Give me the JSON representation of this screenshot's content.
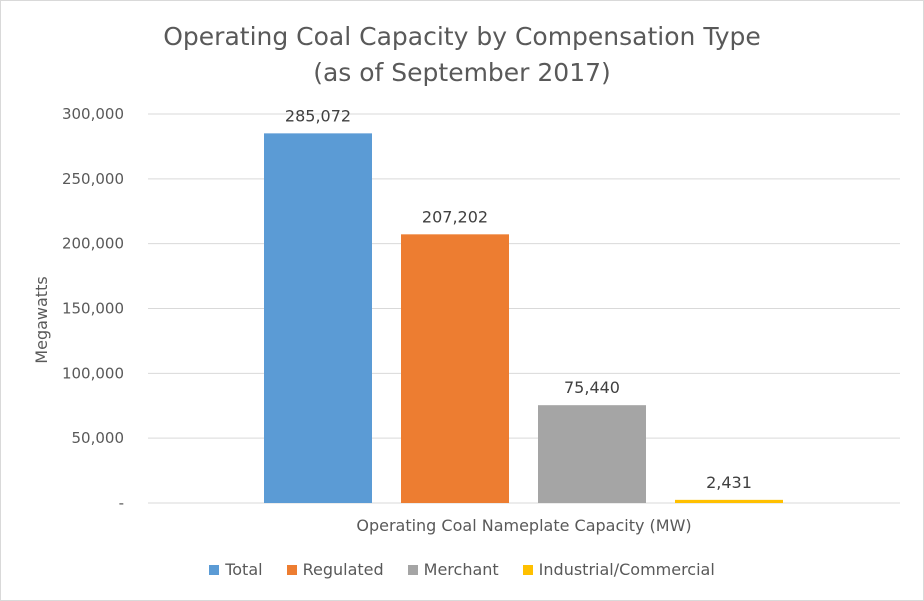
{
  "chart_data": {
    "type": "bar",
    "title": "Operating Coal Capacity by Compensation Type",
    "subtitle": "(as of September 2017)",
    "xlabel": "Operating Coal Nameplate Capacity (MW)",
    "ylabel": "Megawatts",
    "ylim": [
      0,
      300000
    ],
    "yticks": [
      "-",
      "50,000",
      "100,000",
      "150,000",
      "200,000",
      "250,000",
      "300,000"
    ],
    "grid": true,
    "legend_position": "bottom",
    "categories": [
      "Operating Coal Nameplate Capacity (MW)"
    ],
    "series": [
      {
        "name": "Total",
        "values": [
          285072
        ],
        "label": "285,072",
        "color": "#5B9BD5"
      },
      {
        "name": "Regulated",
        "values": [
          207202
        ],
        "label": "207,202",
        "color": "#ED7D31"
      },
      {
        "name": "Merchant",
        "values": [
          75440
        ],
        "label": "75,440",
        "color": "#A5A5A5"
      },
      {
        "name": "Industrial/Commercial",
        "values": [
          2431
        ],
        "label": "2,431",
        "color": "#FFC000"
      }
    ]
  }
}
